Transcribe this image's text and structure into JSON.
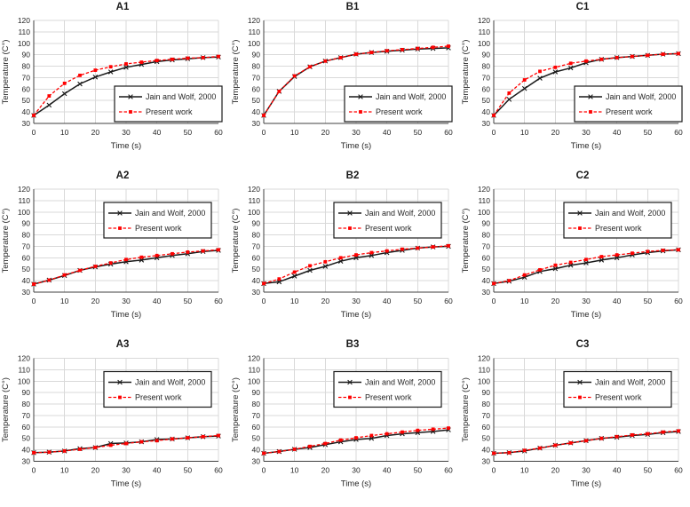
{
  "page": {
    "background": "#ffffff"
  },
  "styles": {
    "grid_color": "#d9d9d9",
    "axis_color": "#404040",
    "text_color": "#262626",
    "series1_color": "#1a1a1a",
    "series2_color": "#ff0000",
    "legend_border": "#1a1a1a",
    "legend_fill": "#ffffff"
  },
  "chart_data": [
    {
      "type": "line",
      "title": "A1",
      "xlabel": "Time (s)",
      "ylabel": "Temperature (C°)",
      "xlim": [
        0,
        60
      ],
      "ylim": [
        30,
        120
      ],
      "xticks": [
        0,
        10,
        20,
        30,
        40,
        50,
        60
      ],
      "yticks": [
        30,
        40,
        50,
        60,
        70,
        80,
        90,
        100,
        110,
        120
      ],
      "grid": true,
      "legend_pos": "bottom-right",
      "x": [
        0,
        5,
        10,
        15,
        20,
        25,
        30,
        35,
        40,
        45,
        50,
        55,
        60
      ],
      "series": [
        {
          "name": "Jain and Wolf, 2000",
          "color": "#1a1a1a",
          "style": "solid",
          "marker": "x",
          "values": [
            37,
            46,
            56,
            64.5,
            70.5,
            75,
            79,
            81.5,
            84,
            85.5,
            86.5,
            87.5,
            88
          ]
        },
        {
          "name": "Present work",
          "color": "#ff0000",
          "style": "dashed",
          "marker": "square",
          "values": [
            37,
            54,
            65,
            72,
            76.5,
            79.5,
            82,
            83.5,
            85,
            86,
            87,
            87.5,
            88.5
          ]
        }
      ]
    },
    {
      "type": "line",
      "title": "B1",
      "xlabel": "Time (s)",
      "ylabel": "Temperature (C°)",
      "xlim": [
        0,
        60
      ],
      "ylim": [
        30,
        120
      ],
      "xticks": [
        0,
        10,
        20,
        30,
        40,
        50,
        60
      ],
      "yticks": [
        30,
        40,
        50,
        60,
        70,
        80,
        90,
        100,
        110,
        120
      ],
      "grid": true,
      "legend_pos": "bottom-right",
      "x": [
        0,
        5,
        10,
        15,
        20,
        25,
        30,
        35,
        40,
        45,
        50,
        55,
        60
      ],
      "series": [
        {
          "name": "Jain and Wolf, 2000",
          "color": "#1a1a1a",
          "style": "solid",
          "marker": "x",
          "values": [
            37,
            58,
            71,
            79.5,
            84.5,
            87.5,
            90.5,
            92,
            93,
            94,
            95,
            95.5,
            96
          ]
        },
        {
          "name": "Present work",
          "color": "#ff0000",
          "style": "dashed",
          "marker": "square",
          "values": [
            37,
            58,
            71.5,
            79.5,
            84.5,
            87.5,
            90.5,
            92,
            93.5,
            94.5,
            95.5,
            96.5,
            97.5
          ]
        }
      ]
    },
    {
      "type": "line",
      "title": "C1",
      "xlabel": "Time (s)",
      "ylabel": "Temperature (C°)",
      "xlim": [
        0,
        60
      ],
      "ylim": [
        30,
        120
      ],
      "xticks": [
        0,
        10,
        20,
        30,
        40,
        50,
        60
      ],
      "yticks": [
        30,
        40,
        50,
        60,
        70,
        80,
        90,
        100,
        110,
        120
      ],
      "grid": true,
      "legend_pos": "bottom-right",
      "x": [
        0,
        5,
        10,
        15,
        20,
        25,
        30,
        35,
        40,
        45,
        50,
        55,
        60
      ],
      "series": [
        {
          "name": "Jain and Wolf, 2000",
          "color": "#1a1a1a",
          "style": "solid",
          "marker": "x",
          "values": [
            37,
            51,
            60.5,
            69.5,
            75,
            78.5,
            83,
            86,
            87.5,
            88.5,
            89.5,
            90.5,
            91
          ]
        },
        {
          "name": "Present work",
          "color": "#ff0000",
          "style": "dashed",
          "marker": "square",
          "values": [
            37,
            56.5,
            68,
            75.5,
            79,
            82.5,
            84.5,
            86,
            87.5,
            88.5,
            89.5,
            90.5,
            91
          ]
        }
      ]
    },
    {
      "type": "line",
      "title": "A2",
      "xlabel": "Time (s)",
      "ylabel": "Temperature (C°)",
      "xlim": [
        0,
        60
      ],
      "ylim": [
        30,
        120
      ],
      "xticks": [
        0,
        10,
        20,
        30,
        40,
        50,
        60
      ],
      "yticks": [
        30,
        40,
        50,
        60,
        70,
        80,
        90,
        100,
        110,
        120
      ],
      "grid": true,
      "legend_pos": "top-right",
      "x": [
        0,
        5,
        10,
        15,
        20,
        25,
        30,
        35,
        40,
        45,
        50,
        55,
        60
      ],
      "series": [
        {
          "name": "Jain and Wolf, 2000",
          "color": "#1a1a1a",
          "style": "solid",
          "marker": "x",
          "values": [
            37,
            40.5,
            44.5,
            49,
            52,
            54.5,
            56.5,
            58,
            60,
            62,
            63.5,
            65.5,
            66.5
          ]
        },
        {
          "name": "Present work",
          "color": "#ff0000",
          "style": "dashed",
          "marker": "square",
          "values": [
            37,
            40.5,
            45,
            49,
            52.5,
            55.5,
            58.5,
            60.5,
            62,
            63.5,
            65,
            66,
            67
          ]
        }
      ]
    },
    {
      "type": "line",
      "title": "B2",
      "xlabel": "Time (s)",
      "ylabel": "Temperature (C°)",
      "xlim": [
        0,
        60
      ],
      "ylim": [
        30,
        120
      ],
      "xticks": [
        0,
        10,
        20,
        30,
        40,
        50,
        60
      ],
      "yticks": [
        30,
        40,
        50,
        60,
        70,
        80,
        90,
        100,
        110,
        120
      ],
      "grid": true,
      "legend_pos": "top-right",
      "x": [
        0,
        5,
        10,
        15,
        20,
        25,
        30,
        35,
        40,
        45,
        50,
        55,
        60
      ],
      "series": [
        {
          "name": "Jain and Wolf, 2000",
          "color": "#1a1a1a",
          "style": "solid",
          "marker": "x",
          "values": [
            37.5,
            39,
            44,
            49,
            52.5,
            57,
            60,
            62,
            64.5,
            66.5,
            68.5,
            69.5,
            70
          ]
        },
        {
          "name": "Present work",
          "color": "#ff0000",
          "style": "dashed",
          "marker": "square",
          "values": [
            37.5,
            41.5,
            47.5,
            53,
            56.5,
            60,
            62.5,
            64.5,
            66,
            67.5,
            68.5,
            69.5,
            70.5
          ]
        }
      ]
    },
    {
      "type": "line",
      "title": "C2",
      "xlabel": "Time (s)",
      "ylabel": "Temperature (C°)",
      "xlim": [
        0,
        60
      ],
      "ylim": [
        30,
        120
      ],
      "xticks": [
        0,
        10,
        20,
        30,
        40,
        50,
        60
      ],
      "yticks": [
        30,
        40,
        50,
        60,
        70,
        80,
        90,
        100,
        110,
        120
      ],
      "grid": true,
      "legend_pos": "top-right",
      "x": [
        0,
        5,
        10,
        15,
        20,
        25,
        30,
        35,
        40,
        45,
        50,
        55,
        60
      ],
      "series": [
        {
          "name": "Jain and Wolf, 2000",
          "color": "#1a1a1a",
          "style": "solid",
          "marker": "x",
          "values": [
            37.5,
            39.5,
            43,
            48,
            50.5,
            53.5,
            55.5,
            58,
            60,
            62.5,
            64.5,
            66,
            67
          ]
        },
        {
          "name": "Present work",
          "color": "#ff0000",
          "style": "dashed",
          "marker": "square",
          "values": [
            37.5,
            40,
            45,
            49.5,
            53.5,
            56,
            58.5,
            61,
            62.5,
            64,
            65.5,
            66.5,
            67
          ]
        }
      ]
    },
    {
      "type": "line",
      "title": "A3",
      "xlabel": "Time (s)",
      "ylabel": "Temperature (C°)",
      "xlim": [
        0,
        60
      ],
      "ylim": [
        30,
        120
      ],
      "xticks": [
        0,
        10,
        20,
        30,
        40,
        50,
        60
      ],
      "yticks": [
        30,
        40,
        50,
        60,
        70,
        80,
        90,
        100,
        110,
        120
      ],
      "grid": true,
      "legend_pos": "top-right",
      "x": [
        0,
        5,
        10,
        15,
        20,
        25,
        30,
        35,
        40,
        45,
        50,
        55,
        60
      ],
      "series": [
        {
          "name": "Jain and Wolf, 2000",
          "color": "#1a1a1a",
          "style": "solid",
          "marker": "x",
          "values": [
            37.5,
            38,
            39,
            41,
            42,
            45.5,
            46,
            47,
            49,
            49.5,
            50.5,
            51.5,
            52
          ]
        },
        {
          "name": "Present work",
          "color": "#ff0000",
          "style": "dashed",
          "marker": "square",
          "values": [
            37.5,
            38,
            39,
            40.5,
            42,
            44,
            45.5,
            47,
            48,
            49.5,
            50.5,
            51.5,
            52.5
          ]
        }
      ]
    },
    {
      "type": "line",
      "title": "B3",
      "xlabel": "Time (s)",
      "ylabel": "Temperature (C°)",
      "xlim": [
        0,
        60
      ],
      "ylim": [
        30,
        120
      ],
      "xticks": [
        0,
        10,
        20,
        30,
        40,
        50,
        60
      ],
      "yticks": [
        30,
        40,
        50,
        60,
        70,
        80,
        90,
        100,
        110,
        120
      ],
      "grid": true,
      "legend_pos": "top-right",
      "x": [
        0,
        5,
        10,
        15,
        20,
        25,
        30,
        35,
        40,
        45,
        50,
        55,
        60
      ],
      "series": [
        {
          "name": "Jain and Wolf, 2000",
          "color": "#1a1a1a",
          "style": "solid",
          "marker": "x",
          "values": [
            37,
            38.5,
            40.5,
            42,
            44.5,
            47,
            49,
            50,
            52.5,
            54,
            55,
            56,
            57.5
          ]
        },
        {
          "name": "Present work",
          "color": "#ff0000",
          "style": "dashed",
          "marker": "square",
          "values": [
            37,
            38.5,
            40.5,
            43,
            45.5,
            48.5,
            50.5,
            52.5,
            54,
            55.5,
            57,
            58,
            59
          ]
        }
      ]
    },
    {
      "type": "line",
      "title": "C3",
      "xlabel": "Time (s)",
      "ylabel": "Temperature (C°)",
      "xlim": [
        0,
        60
      ],
      "ylim": [
        30,
        120
      ],
      "xticks": [
        0,
        10,
        20,
        30,
        40,
        50,
        60
      ],
      "yticks": [
        30,
        40,
        50,
        60,
        70,
        80,
        90,
        100,
        110,
        120
      ],
      "grid": true,
      "legend_pos": "top-right",
      "x": [
        0,
        5,
        10,
        15,
        20,
        25,
        30,
        35,
        40,
        45,
        50,
        55,
        60
      ],
      "series": [
        {
          "name": "Jain and Wolf, 2000",
          "color": "#1a1a1a",
          "style": "solid",
          "marker": "x",
          "values": [
            37,
            37.5,
            39,
            41.5,
            44,
            46,
            48,
            50,
            51,
            52.5,
            53.5,
            55,
            56
          ]
        },
        {
          "name": "Present work",
          "color": "#ff0000",
          "style": "dashed",
          "marker": "square",
          "values": [
            37,
            37.5,
            39.5,
            41.5,
            44,
            46,
            48,
            50,
            51.5,
            53,
            54,
            55.5,
            56.5
          ]
        }
      ]
    }
  ]
}
